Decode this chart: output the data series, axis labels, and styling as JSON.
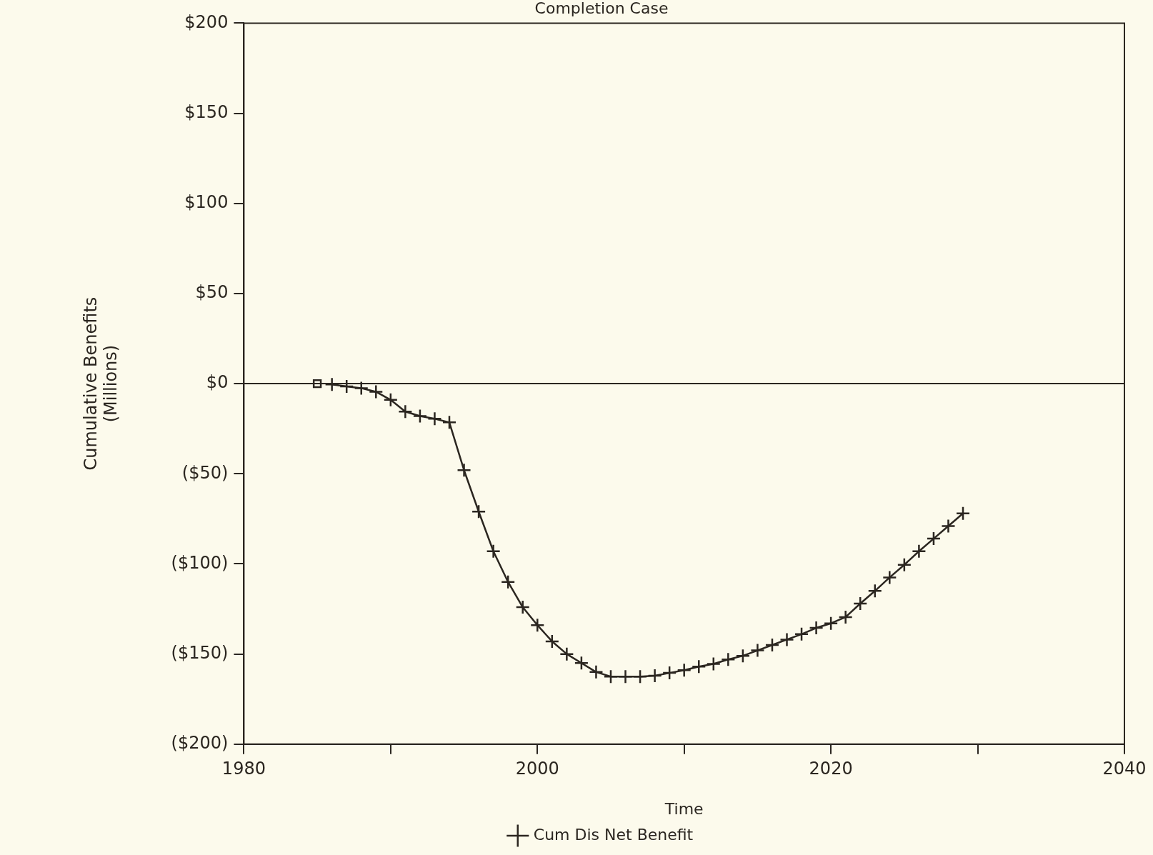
{
  "chart_data": {
    "type": "line",
    "title": "Completion Case",
    "xlabel": "Time",
    "ylabel": "Cumulative Benefits\n(Millions)",
    "x": [
      1986,
      1987,
      1988,
      1989,
      1990,
      1991,
      1992,
      1993,
      1994,
      1995,
      1996,
      1997,
      1998,
      1999,
      2000,
      2001,
      2002,
      2003,
      2004,
      2005,
      2006,
      2007,
      2008,
      2009,
      2010,
      2011,
      2012,
      2013,
      2014,
      2015,
      2016,
      2017,
      2018,
      2019,
      2020,
      2021,
      2022,
      2023,
      2024,
      2025,
      2026,
      2027,
      2028,
      2029
    ],
    "series": [
      {
        "name": "Cum Dis Net Benefit",
        "color": "#2b2620",
        "marker": "cross",
        "values": [
          -0.5,
          -1.5,
          -2.5,
          -4.5,
          -9,
          -15.5,
          -18,
          -19.5,
          -21.5,
          -48,
          -71,
          -93,
          -110,
          -124,
          -134,
          -143,
          -150,
          -155,
          -160,
          -162.5,
          -162.5,
          -162.5,
          -162,
          -160.5,
          -159,
          -157,
          -155.5,
          -153,
          -151,
          -148,
          -145,
          -142,
          -139,
          -135.5,
          -133,
          -129.5,
          -122,
          -115,
          -107.5,
          -100.5,
          -93,
          -86,
          -79,
          -72
        ]
      },
      {
        "type": "scatter",
        "color": "#2b2620",
        "marker": "square",
        "x": [
          1985
        ],
        "values": [
          0
        ]
      }
    ],
    "xlim": [
      1980,
      2040
    ],
    "xticks": [
      1980,
      {
        "value": 1990,
        "label": null
      },
      2000,
      {
        "value": 2010,
        "label": null
      },
      2020,
      {
        "value": 2030,
        "label": null
      },
      2040
    ],
    "ylim": [
      -200,
      200
    ],
    "yticks": [
      {
        "value": -200,
        "label": "($200)"
      },
      {
        "value": -150,
        "label": "($150)"
      },
      {
        "value": -100,
        "label": "($100)"
      },
      {
        "value": -50,
        "label": "($50)"
      },
      {
        "value": 0,
        "label": "$0"
      },
      {
        "value": 50,
        "label": "$50"
      },
      {
        "value": 100,
        "label": "$100"
      },
      {
        "value": 150,
        "label": "$150"
      },
      {
        "value": 200,
        "label": "$200"
      }
    ],
    "ref_lines": [
      {
        "axis": "y",
        "value": 0,
        "color": "#2b2620"
      }
    ],
    "grid": false,
    "legend": "bottom"
  }
}
